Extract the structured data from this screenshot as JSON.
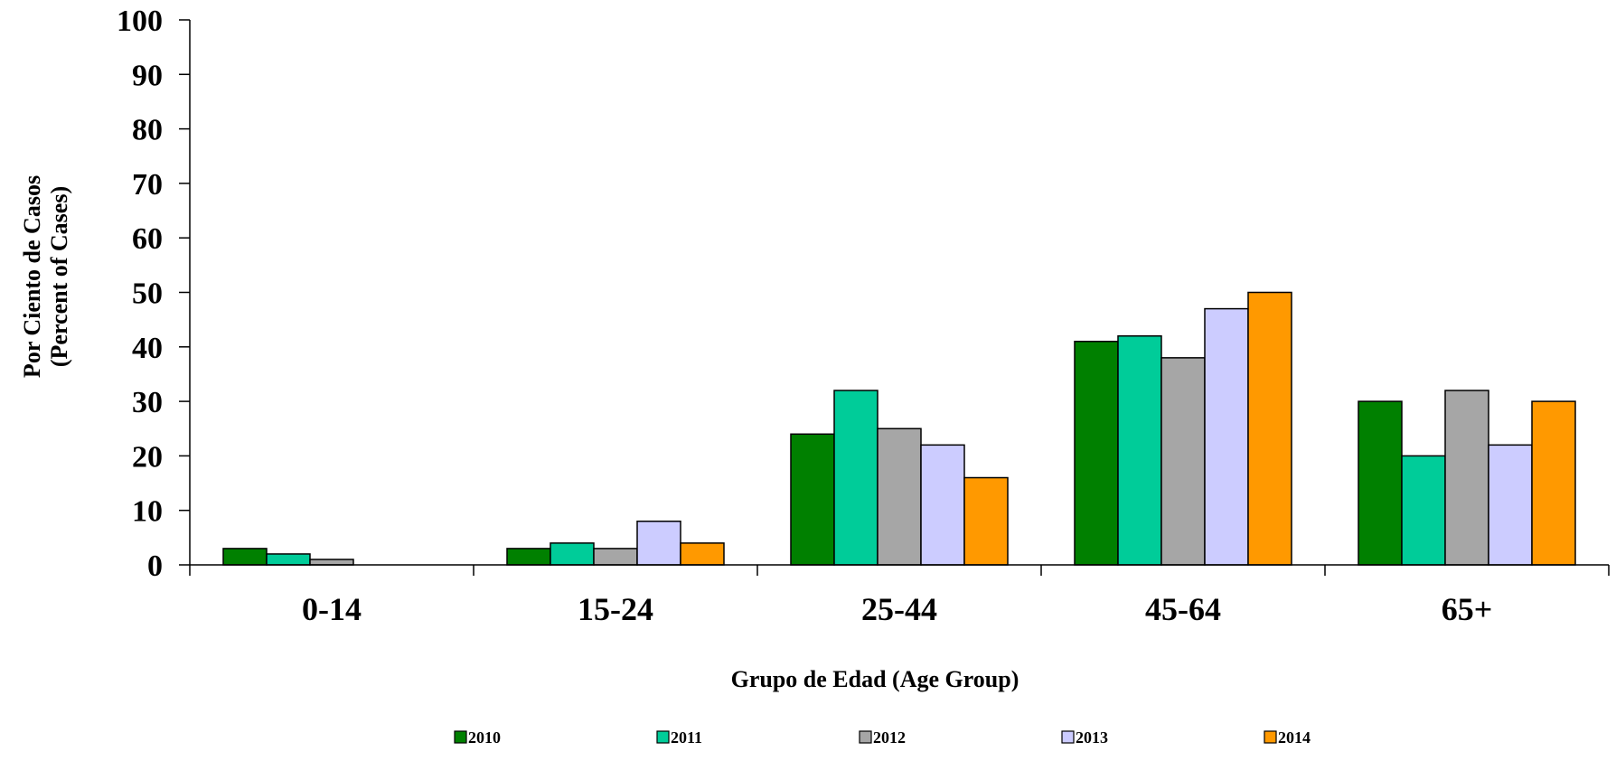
{
  "chart_data": {
    "type": "bar",
    "categories": [
      "0-14",
      "15-24",
      "25-44",
      "45-64",
      "65+"
    ],
    "series": [
      {
        "name": "2010",
        "color": "#008000",
        "values": [
          3,
          3,
          24,
          41,
          30
        ]
      },
      {
        "name": "2011",
        "color": "#00CC99",
        "values": [
          2,
          4,
          32,
          42,
          20
        ]
      },
      {
        "name": "2012",
        "color": "#A6A6A6",
        "values": [
          1,
          3,
          25,
          38,
          32
        ]
      },
      {
        "name": "2013",
        "color": "#CCCCFF",
        "values": [
          0,
          8,
          22,
          47,
          22
        ]
      },
      {
        "name": "2014",
        "color": "#FF9900",
        "values": [
          0,
          4,
          16,
          50,
          30
        ]
      }
    ],
    "title": "",
    "xlabel": "Grupo de Edad (Age Group)",
    "ylabel_line1": "Por Ciento de Casos",
    "ylabel_line2": "(Percent of Cases)",
    "ylim": [
      0,
      100
    ],
    "yticks": [
      0,
      10,
      20,
      30,
      40,
      50,
      60,
      70,
      80,
      90,
      100
    ],
    "grid": false,
    "legend_position": "bottom"
  }
}
